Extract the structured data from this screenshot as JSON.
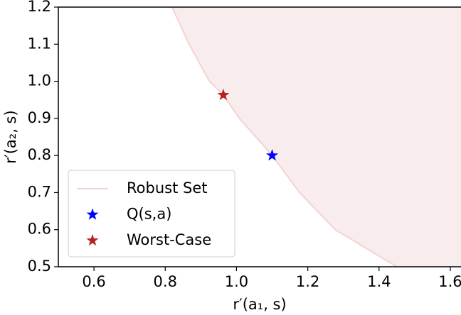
{
  "chart_data": {
    "type": "scatter",
    "xlabel": "r′(a₁, s)",
    "ylabel": "r′(a₂, s)",
    "xlim": [
      0.5,
      1.63
    ],
    "ylim": [
      0.5,
      1.2
    ],
    "xticks": [
      0.6,
      0.8,
      {
        "value": 1,
        "label": "1.0"
      },
      1.2,
      1.4,
      1.6
    ],
    "yticks": [
      0.5,
      0.6,
      0.7,
      0.8,
      0.9,
      {
        "value": 1,
        "label": "1.0"
      },
      1.1,
      1.2
    ],
    "grid": false,
    "legend": "lower left",
    "series": [
      {
        "name": "Robust Set",
        "color": "#f2d4d4",
        "marker": "area",
        "x": [
          0.819,
          0.867,
          0.924,
          0.963,
          1.008,
          1.1,
          1.177,
          1.277,
          1.45
        ],
        "values": [
          1.2,
          1.1,
          1.0,
          0.963,
          0.9,
          0.8,
          0.7,
          0.6,
          0.5
        ]
      },
      {
        "name": "Q(s,a)",
        "color": "#0000ff",
        "marker": "star",
        "x": [
          1.1
        ],
        "values": [
          0.8
        ]
      },
      {
        "name": "Worst-Case",
        "color": "#b22222",
        "marker": "star",
        "x": [
          0.963
        ],
        "values": [
          0.963
        ]
      }
    ]
  }
}
